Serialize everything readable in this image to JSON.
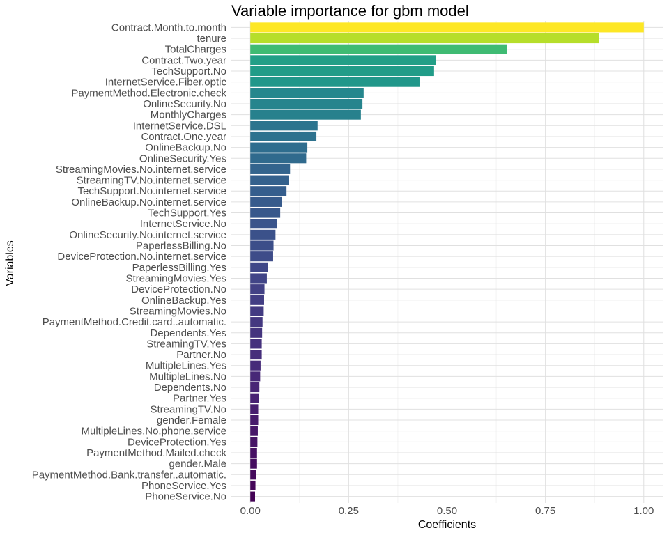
{
  "chart_data": {
    "type": "bar",
    "orientation": "horizontal",
    "title": "Variable importance for gbm model",
    "xlabel": "Coefficients",
    "ylabel": "Variables",
    "xlim": [
      -0.05,
      1.05
    ],
    "xticks": [
      0.0,
      0.25,
      0.5,
      0.75,
      1.0
    ],
    "xtick_labels": [
      "0.00",
      "0.25",
      "0.50",
      "0.75",
      "1.00"
    ],
    "grid": true,
    "legend": "none",
    "colormap": "viridis",
    "categories": [
      "Contract.Month.to.month",
      "tenure",
      "TotalCharges",
      "Contract.Two.year",
      "TechSupport.No",
      "InternetService.Fiber.optic",
      "PaymentMethod.Electronic.check",
      "OnlineSecurity.No",
      "MonthlyCharges",
      "InternetService.DSL",
      "Contract.One.year",
      "OnlineBackup.No",
      "OnlineSecurity.Yes",
      "StreamingMovies.No.internet.service",
      "StreamingTV.No.internet.service",
      "TechSupport.No.internet.service",
      "OnlineBackup.No.internet.service",
      "TechSupport.Yes",
      "InternetService.No",
      "OnlineSecurity.No.internet.service",
      "PaperlessBilling.No",
      "DeviceProtection.No.internet.service",
      "PaperlessBilling.Yes",
      "StreamingMovies.Yes",
      "DeviceProtection.No",
      "OnlineBackup.Yes",
      "StreamingMovies.No",
      "PaymentMethod.Credit.card..automatic.",
      "Dependents.Yes",
      "StreamingTV.Yes",
      "Partner.No",
      "MultipleLines.Yes",
      "MultipleLines.No",
      "Dependents.No",
      "Partner.Yes",
      "StreamingTV.No",
      "gender.Female",
      "MultipleLines.No.phone.service",
      "DeviceProtection.Yes",
      "PaymentMethod.Mailed.check",
      "gender.Male",
      "PaymentMethod.Bank.transfer..automatic.",
      "PhoneService.Yes",
      "PhoneService.No"
    ],
    "values": [
      1.0,
      0.886,
      0.652,
      0.472,
      0.467,
      0.43,
      0.288,
      0.285,
      0.281,
      0.171,
      0.168,
      0.145,
      0.142,
      0.101,
      0.097,
      0.092,
      0.081,
      0.076,
      0.067,
      0.064,
      0.059,
      0.058,
      0.044,
      0.042,
      0.036,
      0.035,
      0.034,
      0.031,
      0.03,
      0.029,
      0.029,
      0.026,
      0.025,
      0.023,
      0.022,
      0.02,
      0.02,
      0.019,
      0.018,
      0.017,
      0.017,
      0.015,
      0.013,
      0.012
    ]
  }
}
